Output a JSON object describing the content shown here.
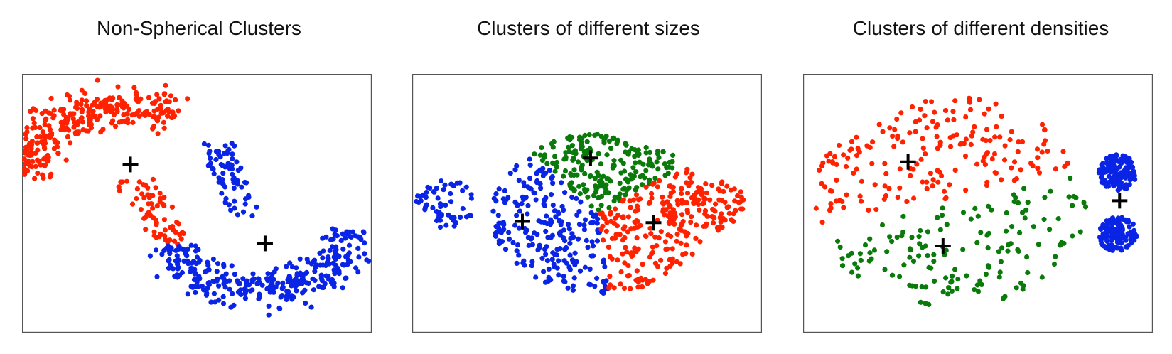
{
  "colors": {
    "red": "#ff2200",
    "blue": "#0a24e6",
    "green": "#0a7a0a",
    "centroid": "#000000",
    "frame": "#555555"
  },
  "chart_data": [
    {
      "type": "scatter",
      "title": "Non-Spherical Clusters",
      "xlim": [
        0,
        10
      ],
      "ylim": [
        0,
        10
      ],
      "axes_ticks": false,
      "grid": false,
      "clusters": [
        {
          "color": "red",
          "shape": "upper-moon",
          "cx": 2.9,
          "cy": 5.85,
          "r": 2.95,
          "a0": 178,
          "a1": 60,
          "thick": 0.6,
          "n": 330,
          "extra": {
            "x0": 3.2,
            "y0": 5.9,
            "x1": 4.5,
            "y1": 3.2,
            "w": 0.55,
            "n": 70
          }
        },
        {
          "color": "blue",
          "shape": "lower-moon",
          "cx": 6.75,
          "cy": 4.3,
          "r": 2.7,
          "a0": 200,
          "a1": 355,
          "thick": 0.55,
          "n": 330,
          "extra": {
            "x0": 5.6,
            "y0": 7.3,
            "x1": 6.3,
            "y1": 4.6,
            "w": 0.45,
            "n": 70
          }
        }
      ],
      "centroids": [
        [
          3.1,
          6.5
        ],
        [
          6.95,
          3.45
        ]
      ]
    },
    {
      "type": "scatter",
      "title": "Clusters of different sizes",
      "xlim": [
        0,
        10
      ],
      "ylim": [
        0,
        10
      ],
      "axes_ticks": false,
      "grid": false,
      "clusters": [
        {
          "color": "blue",
          "shape": "blob",
          "cx": 0.95,
          "cy": 5.0,
          "rx": 0.85,
          "ry": 0.95,
          "n": 55
        },
        {
          "color": "blue",
          "shape": "sector",
          "cx": 5.35,
          "cy": 4.6,
          "r": 3.1,
          "a0": 130,
          "a1": 275,
          "n": 230
        },
        {
          "color": "green",
          "shape": "sector",
          "cx": 5.35,
          "cy": 4.6,
          "r": 3.1,
          "a0": 38,
          "a1": 130,
          "n": 210
        },
        {
          "color": "red",
          "shape": "sector",
          "cx": 5.35,
          "cy": 4.6,
          "r": 3.1,
          "a0": -85,
          "a1": 38,
          "n": 220
        },
        {
          "color": "red",
          "shape": "blob",
          "cx": 8.75,
          "cy": 4.9,
          "rx": 0.8,
          "ry": 1.0,
          "n": 60
        }
      ],
      "centroids": [
        [
          5.1,
          6.75
        ],
        [
          3.15,
          4.3
        ],
        [
          6.9,
          4.25
        ]
      ]
    },
    {
      "type": "scatter",
      "title": "Clusters of different densities",
      "xlim": [
        0,
        10
      ],
      "ylim": [
        0,
        10
      ],
      "axes_ticks": false,
      "grid": false,
      "clusters": [
        {
          "color": "red",
          "shape": "sector",
          "cx": 4.2,
          "cy": 5.2,
          "r": 3.9,
          "a0": 20,
          "a1": 195,
          "n": 190
        },
        {
          "color": "green",
          "shape": "sector",
          "cx": 4.2,
          "cy": 4.9,
          "r": 3.9,
          "a0": 195,
          "a1": 380,
          "n": 150
        },
        {
          "color": "blue",
          "shape": "blob",
          "cx": 9.0,
          "cy": 6.2,
          "rx": 0.55,
          "ry": 0.7,
          "n": 130
        },
        {
          "color": "blue",
          "shape": "blob",
          "cx": 9.0,
          "cy": 3.8,
          "rx": 0.55,
          "ry": 0.7,
          "n": 130
        }
      ],
      "centroids": [
        [
          3.0,
          6.6
        ],
        [
          4.0,
          3.35
        ],
        [
          9.05,
          5.1
        ]
      ]
    }
  ]
}
